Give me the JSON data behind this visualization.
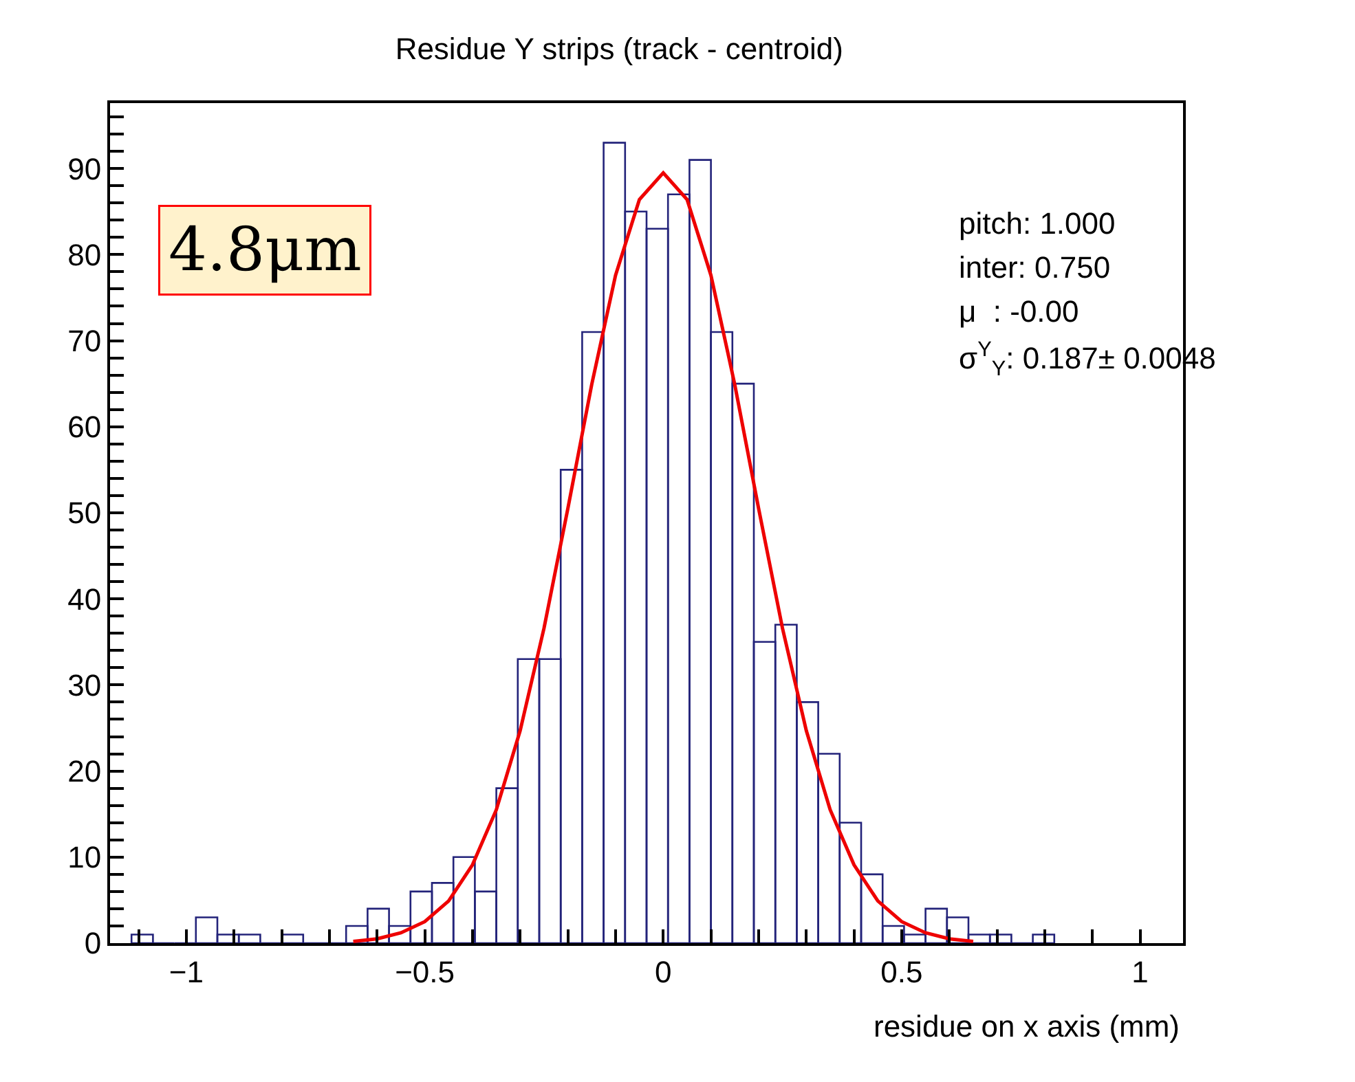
{
  "chart_data": {
    "type": "histogram",
    "title": "Residue Y strips (track - centroid)",
    "xlabel": "residue on x axis (mm)",
    "bins": [
      -1.115,
      -1.07,
      -1.025,
      -0.98,
      -0.935,
      -0.89,
      -0.845,
      -0.8,
      -0.755,
      -0.71,
      -0.665,
      -0.62,
      -0.575,
      -0.53,
      -0.485,
      -0.44,
      -0.395,
      -0.35,
      -0.305,
      -0.26,
      -0.215,
      -0.17,
      -0.125,
      -0.08,
      -0.035,
      0.01,
      0.055,
      0.1,
      0.145,
      0.19,
      0.235,
      0.28,
      0.325,
      0.37,
      0.415,
      0.46,
      0.505,
      0.55,
      0.595,
      0.64,
      0.685,
      0.73,
      0.775,
      0.82
    ],
    "series": [
      {
        "color": "#23237a",
        "values": [
          1,
          0,
          0,
          3,
          1,
          1,
          0,
          1,
          0,
          0,
          2,
          4,
          2,
          6,
          7,
          10,
          6,
          18,
          33,
          33,
          55,
          71,
          93,
          85,
          83,
          87,
          91,
          71,
          65,
          35,
          37,
          28,
          22,
          14,
          8,
          2,
          1,
          4,
          3,
          1,
          1,
          0,
          1
        ]
      },
      {
        "type": "line",
        "color": "#ee0000",
        "x": [
          -0.65,
          -0.6,
          -0.55,
          -0.5,
          -0.45,
          -0.4,
          -0.35,
          -0.3,
          -0.25,
          -0.2,
          -0.15,
          -0.1,
          -0.05,
          0,
          0.05,
          0.1,
          0.15,
          0.2,
          0.25,
          0.3,
          0.35,
          0.4,
          0.45,
          0.5,
          0.55,
          0.6,
          0.65
        ],
        "values": [
          0.2,
          0.5,
          1.2,
          2.5,
          4.9,
          9.1,
          15.5,
          24.7,
          36.6,
          50.5,
          64.9,
          77.6,
          86.4,
          89.5,
          86.4,
          77.6,
          64.9,
          50.5,
          36.6,
          24.7,
          15.5,
          9.1,
          4.9,
          2.5,
          1.2,
          0.5,
          0.2
        ]
      }
    ],
    "xlim": [
      -1.16,
      1.09
    ],
    "ylim": [
      0,
      97.6
    ],
    "xticks": [
      {
        "value": -1.1,
        "label": null
      },
      {
        "value": -1,
        "label": "−1"
      },
      {
        "value": -0.9,
        "label": null
      },
      {
        "value": -0.8,
        "label": null
      },
      {
        "value": -0.7,
        "label": null
      },
      {
        "value": -0.6,
        "label": null
      },
      {
        "value": -0.5,
        "label": "−0.5"
      },
      {
        "value": -0.4,
        "label": null
      },
      {
        "value": -0.3,
        "label": null
      },
      {
        "value": -0.2,
        "label": null
      },
      {
        "value": -0.1,
        "label": null
      },
      0,
      {
        "value": 0.1,
        "label": null
      },
      {
        "value": 0.2,
        "label": null
      },
      {
        "value": 0.3,
        "label": null
      },
      {
        "value": 0.4,
        "label": null
      },
      0.5,
      {
        "value": 0.6,
        "label": null
      },
      {
        "value": 0.7,
        "label": null
      },
      {
        "value": 0.8,
        "label": null
      },
      {
        "value": 0.9,
        "label": null
      },
      1
    ],
    "yticks": [
      0,
      {
        "value": 2,
        "label": null
      },
      {
        "value": 4,
        "label": null
      },
      {
        "value": 6,
        "label": null
      },
      {
        "value": 8,
        "label": null
      },
      10,
      {
        "value": 12,
        "label": null
      },
      {
        "value": 14,
        "label": null
      },
      {
        "value": 16,
        "label": null
      },
      {
        "value": 18,
        "label": null
      },
      20,
      {
        "value": 22,
        "label": null
      },
      {
        "value": 24,
        "label": null
      },
      {
        "value": 26,
        "label": null
      },
      {
        "value": 28,
        "label": null
      },
      30,
      {
        "value": 32,
        "label": null
      },
      {
        "value": 34,
        "label": null
      },
      {
        "value": 36,
        "label": null
      },
      {
        "value": 38,
        "label": null
      },
      40,
      {
        "value": 42,
        "label": null
      },
      {
        "value": 44,
        "label": null
      },
      {
        "value": 46,
        "label": null
      },
      {
        "value": 48,
        "label": null
      },
      50,
      {
        "value": 52,
        "label": null
      },
      {
        "value": 54,
        "label": null
      },
      {
        "value": 56,
        "label": null
      },
      {
        "value": 58,
        "label": null
      },
      60,
      {
        "value": 62,
        "label": null
      },
      {
        "value": 64,
        "label": null
      },
      {
        "value": 66,
        "label": null
      },
      {
        "value": 68,
        "label": null
      },
      70,
      {
        "value": 72,
        "label": null
      },
      {
        "value": 74,
        "label": null
      },
      {
        "value": 76,
        "label": null
      },
      {
        "value": 78,
        "label": null
      },
      80,
      {
        "value": 82,
        "label": null
      },
      {
        "value": 84,
        "label": null
      },
      {
        "value": 86,
        "label": null
      },
      {
        "value": 88,
        "label": null
      },
      90,
      {
        "value": 92,
        "label": null
      },
      {
        "value": 94,
        "label": null
      },
      {
        "value": 96,
        "label": null
      }
    ],
    "annotations": [
      "4.8μm",
      "pitch: 1.000",
      "inter: 0.750",
      "μ  : -0.00",
      "σ$^{Y}$$_{Y}$: 0.187± 0.0048"
    ],
    "tick_labels": "xy"
  }
}
